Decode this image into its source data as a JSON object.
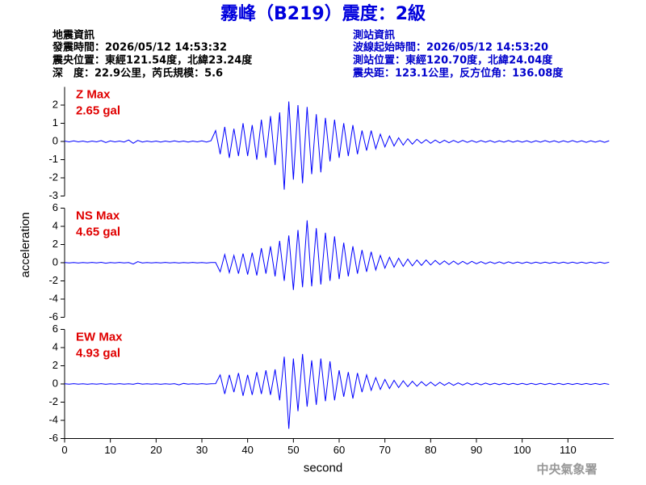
{
  "header": {
    "title": "霧峰（B219）震度：2級",
    "left": [
      "地震資訊",
      "發震時間：2026/05/12 14:53:32",
      "震央位置：東經121.54度，北緯23.24度",
      "深　度：22.9公里，芮氏規模：5.6"
    ],
    "right": [
      "測站資訊",
      "波線起始時間：2026/05/12 14:53:20",
      "測站位置：東經120.70度，北緯24.04度",
      "震央距：123.1公里，反方位角：136.08度"
    ]
  },
  "footer": {
    "credit": "中央氣象署"
  },
  "chart_data": [
    {
      "type": "line",
      "label": "Z Max",
      "annotation": "2.65 gal",
      "color": "#0000ff",
      "label_color": "#e00000",
      "xlim": [
        0,
        120
      ],
      "ylim": [
        -3,
        3
      ],
      "yticks": [
        -3,
        -2,
        -1,
        0,
        1,
        2
      ],
      "x": [
        0,
        1,
        2,
        3,
        4,
        5,
        6,
        7,
        8,
        9,
        10,
        11,
        12,
        13,
        14,
        15,
        16,
        17,
        18,
        19,
        20,
        21,
        22,
        23,
        24,
        25,
        26,
        27,
        28,
        29,
        30,
        31,
        32,
        33,
        34,
        35,
        36,
        37,
        38,
        39,
        40,
        41,
        42,
        43,
        44,
        45,
        46,
        47,
        48,
        49,
        50,
        51,
        52,
        53,
        54,
        55,
        56,
        57,
        58,
        59,
        60,
        61,
        62,
        63,
        64,
        65,
        66,
        67,
        68,
        69,
        70,
        71,
        72,
        73,
        74,
        75,
        76,
        77,
        78,
        79,
        80,
        81,
        82,
        83,
        84,
        85,
        86,
        87,
        88,
        89,
        90,
        91,
        92,
        93,
        94,
        95,
        96,
        97,
        98,
        99,
        100,
        101,
        102,
        103,
        104,
        105,
        106,
        107,
        108,
        109,
        110,
        111,
        112,
        113,
        114,
        115,
        116,
        117,
        118,
        119
      ],
      "values": [
        0.02,
        -0.02,
        0.03,
        -0.02,
        0.02,
        -0.03,
        0.02,
        -0.02,
        0.05,
        -0.06,
        0.03,
        -0.02,
        0.02,
        -0.03,
        0.08,
        -0.1,
        0.06,
        -0.03,
        0.02,
        -0.02,
        0.02,
        -0.03,
        0.02,
        -0.02,
        0.03,
        -0.02,
        0.02,
        -0.03,
        0.02,
        -0.02,
        0.03,
        -0.03,
        0.04,
        0.6,
        -0.7,
        0.8,
        -0.9,
        0.7,
        -0.8,
        1.0,
        -0.8,
        0.9,
        -1.0,
        1.2,
        -0.9,
        1.4,
        -1.3,
        1.6,
        -2.65,
        2.2,
        -2.1,
        2.0,
        -2.3,
        1.9,
        -1.8,
        1.5,
        -1.7,
        1.3,
        -1.1,
        1.2,
        -0.9,
        1.0,
        -0.8,
        0.9,
        -0.7,
        0.6,
        -0.5,
        0.6,
        -0.4,
        0.4,
        -0.3,
        0.3,
        -0.25,
        0.2,
        -0.2,
        0.15,
        -0.15,
        0.12,
        -0.1,
        0.1,
        -0.1,
        0.08,
        -0.08,
        0.07,
        -0.07,
        0.06,
        -0.06,
        0.06,
        -0.05,
        0.05,
        -0.05,
        0.05,
        -0.04,
        0.05,
        -0.05,
        0.04,
        -0.04,
        0.05,
        -0.04,
        0.04,
        -0.04,
        0.04,
        -0.05,
        0.04,
        -0.04,
        0.05,
        -0.04,
        0.04,
        -0.05,
        0.04,
        -0.04,
        0.05,
        -0.04,
        0.04,
        -0.05,
        0.04,
        -0.04,
        0.04,
        -0.05,
        0.04
      ]
    },
    {
      "type": "line",
      "label": "NS Max",
      "annotation": "4.65 gal",
      "color": "#0000ff",
      "label_color": "#e00000",
      "ylabel": "acceleration",
      "xlim": [
        0,
        120
      ],
      "ylim": [
        -6,
        6
      ],
      "yticks": [
        -6,
        -4,
        -2,
        0,
        2,
        4,
        6
      ],
      "x": [
        0,
        1,
        2,
        3,
        4,
        5,
        6,
        7,
        8,
        9,
        10,
        11,
        12,
        13,
        14,
        15,
        16,
        17,
        18,
        19,
        20,
        21,
        22,
        23,
        24,
        25,
        26,
        27,
        28,
        29,
        30,
        31,
        32,
        33,
        34,
        35,
        36,
        37,
        38,
        39,
        40,
        41,
        42,
        43,
        44,
        45,
        46,
        47,
        48,
        49,
        50,
        51,
        52,
        53,
        54,
        55,
        56,
        57,
        58,
        59,
        60,
        61,
        62,
        63,
        64,
        65,
        66,
        67,
        68,
        69,
        70,
        71,
        72,
        73,
        74,
        75,
        76,
        77,
        78,
        79,
        80,
        81,
        82,
        83,
        84,
        85,
        86,
        87,
        88,
        89,
        90,
        91,
        92,
        93,
        94,
        95,
        96,
        97,
        98,
        99,
        100,
        101,
        102,
        103,
        104,
        105,
        106,
        107,
        108,
        109,
        110,
        111,
        112,
        113,
        114,
        115,
        116,
        117,
        118,
        119
      ],
      "values": [
        0.02,
        -0.02,
        0.02,
        -0.03,
        0.02,
        -0.02,
        0.03,
        -0.02,
        0.04,
        -0.05,
        0.02,
        -0.02,
        0.03,
        -0.02,
        0.02,
        -0.15,
        0.12,
        -0.03,
        0.02,
        -0.02,
        0.02,
        -0.02,
        0.03,
        -0.02,
        0.02,
        -0.03,
        0.02,
        -0.02,
        0.03,
        -0.02,
        0.02,
        -0.03,
        0.02,
        0.02,
        -1.0,
        0.9,
        -1.1,
        0.8,
        -1.2,
        1.0,
        -1.3,
        1.1,
        -1.4,
        1.6,
        -1.2,
        1.8,
        -1.5,
        2.4,
        -2.0,
        3.0,
        -3.0,
        3.6,
        -2.7,
        4.65,
        -2.6,
        3.8,
        -2.4,
        3.3,
        -2.0,
        2.9,
        -1.8,
        2.2,
        -1.5,
        1.8,
        -1.2,
        1.4,
        -1.0,
        1.2,
        -0.8,
        0.8,
        -0.6,
        0.6,
        -0.5,
        0.5,
        -0.4,
        0.4,
        -0.35,
        0.3,
        -0.3,
        0.3,
        -0.25,
        0.25,
        -0.2,
        0.2,
        -0.2,
        0.18,
        -0.18,
        0.15,
        -0.15,
        0.15,
        -0.12,
        0.12,
        -0.12,
        0.1,
        -0.1,
        0.1,
        -0.1,
        0.1,
        -0.08,
        0.08,
        -0.08,
        0.08,
        -0.08,
        0.07,
        -0.07,
        0.07,
        -0.07,
        0.07,
        -0.06,
        0.06,
        -0.06,
        0.06,
        -0.06,
        0.06,
        -0.06,
        0.06,
        -0.06,
        0.06,
        -0.06,
        0.06
      ]
    },
    {
      "type": "line",
      "label": "EW Max",
      "annotation": "4.93 gal",
      "color": "#0000ff",
      "label_color": "#e00000",
      "xlabel": "second",
      "xlim": [
        0,
        120
      ],
      "ylim": [
        -6,
        6
      ],
      "yticks": [
        -6,
        -4,
        -2,
        0,
        2,
        4,
        6
      ],
      "xticks": [
        0,
        10,
        20,
        30,
        40,
        50,
        60,
        70,
        80,
        90,
        100,
        110
      ],
      "x": [
        0,
        1,
        2,
        3,
        4,
        5,
        6,
        7,
        8,
        9,
        10,
        11,
        12,
        13,
        14,
        15,
        16,
        17,
        18,
        19,
        20,
        21,
        22,
        23,
        24,
        25,
        26,
        27,
        28,
        29,
        30,
        31,
        32,
        33,
        34,
        35,
        36,
        37,
        38,
        39,
        40,
        41,
        42,
        43,
        44,
        45,
        46,
        47,
        48,
        49,
        50,
        51,
        52,
        53,
        54,
        55,
        56,
        57,
        58,
        59,
        60,
        61,
        62,
        63,
        64,
        65,
        66,
        67,
        68,
        69,
        70,
        71,
        72,
        73,
        74,
        75,
        76,
        77,
        78,
        79,
        80,
        81,
        82,
        83,
        84,
        85,
        86,
        87,
        88,
        89,
        90,
        91,
        92,
        93,
        94,
        95,
        96,
        97,
        98,
        99,
        100,
        101,
        102,
        103,
        104,
        105,
        106,
        107,
        108,
        109,
        110,
        111,
        112,
        113,
        114,
        115,
        116,
        117,
        118,
        119
      ],
      "values": [
        0.02,
        -0.02,
        0.03,
        -0.02,
        0.02,
        -0.03,
        0.02,
        -0.02,
        0.03,
        -0.03,
        0.02,
        -0.02,
        0.03,
        -0.02,
        0.02,
        -0.03,
        0.08,
        -0.02,
        0.02,
        -0.02,
        0.02,
        -0.03,
        0.02,
        -0.02,
        0.03,
        -0.1,
        0.06,
        -0.02,
        0.02,
        -0.02,
        0.03,
        -0.02,
        0.02,
        0.03,
        1.0,
        -1.1,
        1.0,
        -0.9,
        1.2,
        -1.3,
        1.0,
        -1.2,
        1.3,
        -1.1,
        1.5,
        -1.2,
        1.6,
        -1.8,
        3.0,
        -4.93,
        2.8,
        -3.0,
        3.3,
        -2.5,
        2.6,
        -2.3,
        2.8,
        -1.9,
        2.5,
        -1.8,
        1.5,
        -1.4,
        1.3,
        -1.6,
        1.2,
        -0.9,
        1.0,
        -0.7,
        0.7,
        -0.6,
        0.5,
        -0.5,
        0.4,
        -0.4,
        0.35,
        -0.3,
        0.3,
        -0.25,
        0.25,
        -0.2,
        0.2,
        -0.2,
        0.18,
        -0.15,
        0.15,
        -0.15,
        0.12,
        -0.12,
        0.12,
        -0.1,
        0.1,
        -0.1,
        0.1,
        -0.08,
        0.08,
        -0.08,
        0.08,
        -0.07,
        0.07,
        -0.07,
        0.06,
        -0.06,
        0.06,
        -0.06,
        0.06,
        -0.06,
        0.06,
        -0.06,
        0.06,
        -0.06,
        0.05,
        -0.05,
        0.05,
        -0.05,
        0.05,
        -0.05,
        0.05,
        -0.05,
        0.05,
        -0.05
      ]
    }
  ]
}
